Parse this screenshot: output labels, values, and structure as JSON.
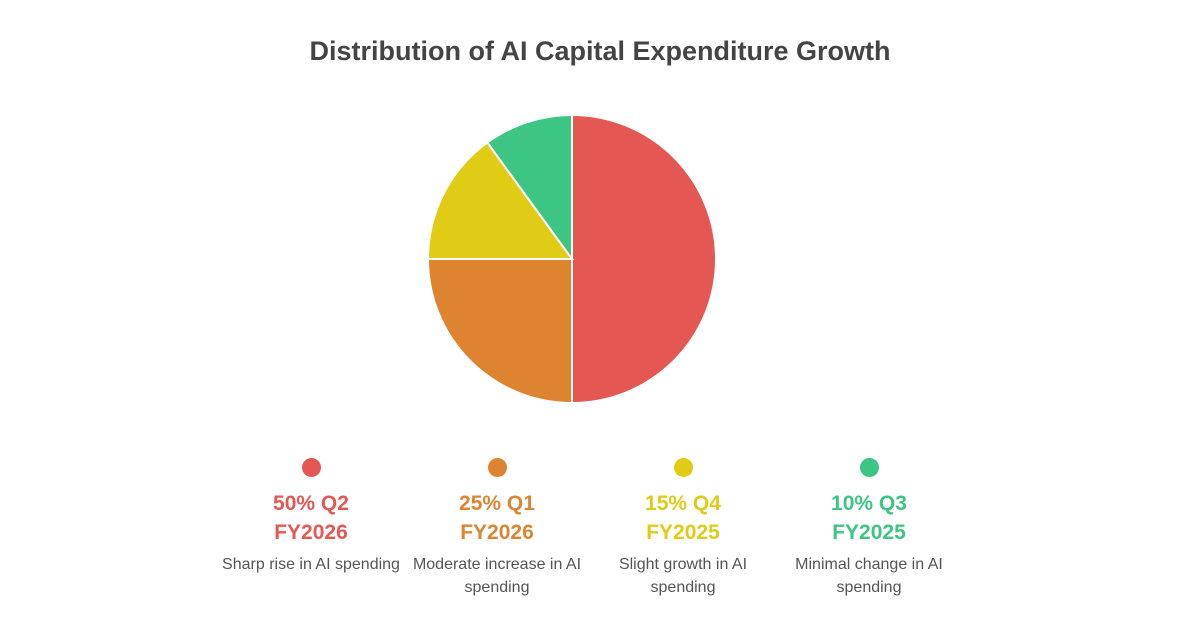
{
  "chart_data": {
    "type": "pie",
    "title": "Distribution of AI Capital Expenditure Growth",
    "legend_placement": "bottom",
    "slices": [
      {
        "value": 50,
        "label_line1": "50% Q2",
        "label_line2": "FY2026",
        "description": "Sharp rise in AI spending",
        "color": "#E55753"
      },
      {
        "value": 25,
        "label_line1": "25% Q1",
        "label_line2": "FY2026",
        "description": "Moderate increase in AI spending",
        "color": "#DE8431"
      },
      {
        "value": 15,
        "label_line1": "15% Q4",
        "label_line2": "FY2025",
        "description": "Slight growth in AI spending",
        "color": "#E0CB15"
      },
      {
        "value": 10,
        "label_line1": "10% Q3",
        "label_line2": "FY2025",
        "description": "Minimal change in AI spending",
        "color": "#3CC583"
      }
    ]
  }
}
